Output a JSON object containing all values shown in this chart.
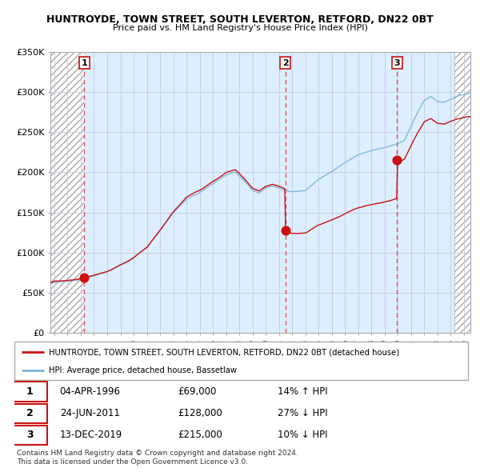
{
  "title1": "HUNTROYDE, TOWN STREET, SOUTH LEVERTON, RETFORD, DN22 0BT",
  "title2": "Price paid vs. HM Land Registry's House Price Index (HPI)",
  "legend_label1": "HUNTROYDE, TOWN STREET, SOUTH LEVERTON, RETFORD, DN22 0BT (detached house)",
  "legend_label2": "HPI: Average price, detached house, Bassetlaw",
  "sale_prices": [
    69000,
    128000,
    215000
  ],
  "sale_labels": [
    "1",
    "2",
    "3"
  ],
  "table_data": [
    [
      "1",
      "04-APR-1996",
      "£69,000",
      "14% ↑ HPI"
    ],
    [
      "2",
      "24-JUN-2011",
      "£128,000",
      "27% ↓ HPI"
    ],
    [
      "3",
      "13-DEC-2019",
      "£215,000",
      "10% ↓ HPI"
    ]
  ],
  "footer": "Contains HM Land Registry data © Crown copyright and database right 2024.\nThis data is licensed under the Open Government Licence v3.0.",
  "hpi_color": "#7ab4d8",
  "price_color": "#cc1111",
  "vline_color": "#dd4444",
  "ylim": [
    0,
    350000
  ],
  "yticks": [
    0,
    50000,
    100000,
    150000,
    200000,
    250000,
    300000,
    350000
  ],
  "ytick_labels": [
    "£0",
    "£50K",
    "£100K",
    "£150K",
    "£200K",
    "£250K",
    "£300K",
    "£350K"
  ],
  "xlim_start": 1993.7,
  "xlim_end": 2025.5,
  "sale_years": [
    1996.27,
    2011.48,
    2019.95
  ]
}
